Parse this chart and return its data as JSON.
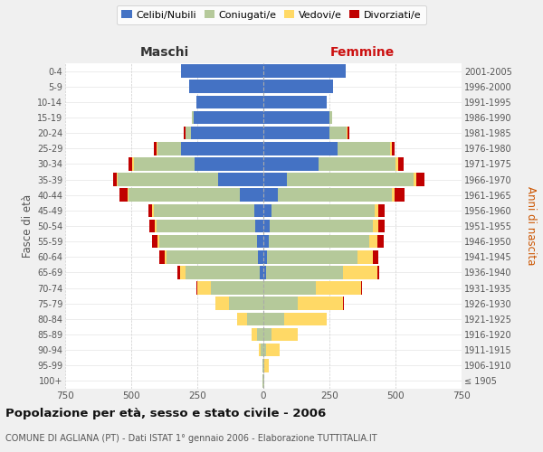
{
  "age_groups": [
    "100+",
    "95-99",
    "90-94",
    "85-89",
    "80-84",
    "75-79",
    "70-74",
    "65-69",
    "60-64",
    "55-59",
    "50-54",
    "45-49",
    "40-44",
    "35-39",
    "30-34",
    "25-29",
    "20-24",
    "15-19",
    "10-14",
    "5-9",
    "0-4"
  ],
  "birth_years": [
    "≤ 1905",
    "1906-1910",
    "1911-1915",
    "1916-1920",
    "1921-1925",
    "1926-1930",
    "1931-1935",
    "1936-1940",
    "1941-1945",
    "1946-1950",
    "1951-1955",
    "1956-1960",
    "1961-1965",
    "1966-1970",
    "1971-1975",
    "1976-1980",
    "1981-1985",
    "1986-1990",
    "1991-1995",
    "1996-2000",
    "2001-2005"
  ],
  "males": {
    "celibe": [
      0,
      0,
      0,
      0,
      0,
      0,
      0,
      15,
      20,
      25,
      30,
      35,
      90,
      170,
      260,
      310,
      275,
      265,
      255,
      280,
      310
    ],
    "coniugato": [
      2,
      3,
      10,
      25,
      60,
      130,
      200,
      280,
      345,
      370,
      375,
      380,
      420,
      380,
      230,
      90,
      20,
      5,
      0,
      0,
      0
    ],
    "vedovo": [
      0,
      2,
      8,
      20,
      40,
      50,
      50,
      20,
      10,
      5,
      5,
      5,
      5,
      5,
      5,
      5,
      0,
      0,
      0,
      0,
      0
    ],
    "divorziato": [
      0,
      0,
      0,
      0,
      0,
      0,
      5,
      10,
      20,
      20,
      20,
      15,
      30,
      15,
      15,
      8,
      5,
      0,
      0,
      0,
      0
    ]
  },
  "females": {
    "nubile": [
      0,
      0,
      0,
      0,
      0,
      0,
      0,
      10,
      15,
      20,
      25,
      30,
      55,
      90,
      210,
      280,
      250,
      250,
      240,
      265,
      310
    ],
    "coniugata": [
      2,
      5,
      10,
      30,
      80,
      130,
      200,
      290,
      340,
      380,
      390,
      390,
      430,
      480,
      290,
      200,
      65,
      10,
      0,
      0,
      0
    ],
    "vedova": [
      2,
      15,
      50,
      100,
      160,
      170,
      170,
      130,
      60,
      30,
      20,
      15,
      10,
      10,
      10,
      8,
      5,
      0,
      0,
      0,
      0
    ],
    "divorziata": [
      0,
      0,
      0,
      0,
      0,
      5,
      5,
      10,
      20,
      25,
      25,
      25,
      40,
      30,
      20,
      10,
      5,
      0,
      0,
      0,
      0
    ]
  },
  "colors": {
    "celibe_nubile": "#4472c4",
    "coniugato_coniugata": "#b5c99a",
    "vedovo_vedova": "#ffd966",
    "divorziato_divorziata": "#c00000"
  },
  "title": "Popolazione per età, sesso e stato civile - 2006",
  "subtitle": "COMUNE DI AGLIANA (PT) - Dati ISTAT 1° gennaio 2006 - Elaborazione TUTTITALIA.IT",
  "xlabel_left": "Maschi",
  "xlabel_right": "Femmine",
  "ylabel_left": "Fasce di età",
  "ylabel_right": "Anni di nascita",
  "xlim": 750,
  "legend_labels": [
    "Celibi/Nubili",
    "Coniugati/e",
    "Vedovi/e",
    "Divorziati/e"
  ],
  "bg_color": "#f0f0f0",
  "plot_bg_color": "#ffffff"
}
